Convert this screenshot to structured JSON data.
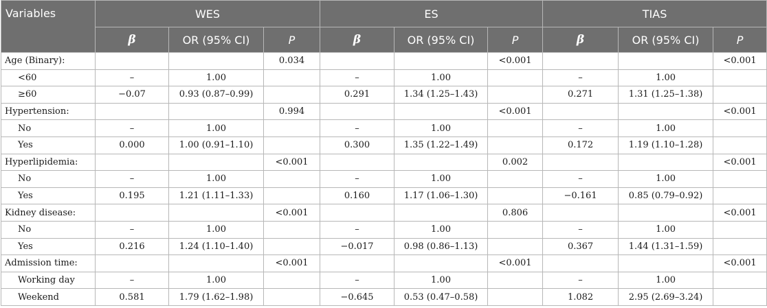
{
  "header": {
    "variables": "Variables",
    "groups": [
      "WES",
      "ES",
      "TIAS"
    ],
    "beta": "β",
    "or": "OR (95% CI)",
    "p": "P"
  },
  "rows": [
    {
      "label": "Age (Binary):",
      "sub": false,
      "c": [
        "",
        "",
        "0.034",
        "",
        "",
        "<0.001",
        "",
        "",
        "<0.001"
      ]
    },
    {
      "label": "<60",
      "sub": true,
      "c": [
        "–",
        "1.00",
        "",
        "–",
        "1.00",
        "",
        "–",
        "1.00",
        ""
      ]
    },
    {
      "label": "≥60",
      "sub": true,
      "c": [
        "−0.07",
        "0.93 (0.87–0.99)",
        "",
        "0.291",
        "1.34 (1.25–1.43)",
        "",
        "0.271",
        "1.31 (1.25–1.38)",
        ""
      ]
    },
    {
      "label": "Hypertension:",
      "sub": false,
      "c": [
        "",
        "",
        "0.994",
        "",
        "",
        "<0.001",
        "",
        "",
        "<0.001"
      ]
    },
    {
      "label": "No",
      "sub": true,
      "c": [
        "–",
        "1.00",
        "",
        "–",
        "1.00",
        "",
        "–",
        "1.00",
        ""
      ]
    },
    {
      "label": "Yes",
      "sub": true,
      "c": [
        "0.000",
        "1.00 (0.91–1.10)",
        "",
        "0.300",
        "1.35 (1.22–1.49)",
        "",
        "0.172",
        "1.19 (1.10–1.28)",
        ""
      ]
    },
    {
      "label": "Hyperlipidemia:",
      "sub": false,
      "c": [
        "",
        "",
        "<0.001",
        "",
        "",
        "0.002",
        "",
        "",
        "<0.001"
      ]
    },
    {
      "label": "No",
      "sub": true,
      "c": [
        "–",
        "1.00",
        "",
        "–",
        "1.00",
        "",
        "–",
        "1.00",
        ""
      ]
    },
    {
      "label": "Yes",
      "sub": true,
      "c": [
        "0.195",
        "1.21 (1.11–1.33)",
        "",
        "0.160",
        "1.17 (1.06–1.30)",
        "",
        "−0.161",
        "0.85 (0.79–0.92)",
        ""
      ]
    },
    {
      "label": "Kidney disease:",
      "sub": false,
      "c": [
        "",
        "",
        "<0.001",
        "",
        "",
        "0.806",
        "",
        "",
        "<0.001"
      ]
    },
    {
      "label": "No",
      "sub": true,
      "c": [
        "–",
        "1.00",
        "",
        "–",
        "1.00",
        "",
        "–",
        "1.00",
        ""
      ]
    },
    {
      "label": "Yes",
      "sub": true,
      "c": [
        "0.216",
        "1.24 (1.10–1.40)",
        "",
        "−0.017",
        "0.98 (0.86–1.13)",
        "",
        "0.367",
        "1.44 (1.31–1.59)",
        ""
      ]
    },
    {
      "label": "Admission time:",
      "sub": false,
      "c": [
        "",
        "",
        "<0.001",
        "",
        "",
        "<0.001",
        "",
        "",
        "<0.001"
      ]
    },
    {
      "label": "Working day",
      "sub": true,
      "c": [
        "–",
        "1.00",
        "",
        "–",
        "1.00",
        "",
        "–",
        "1.00",
        ""
      ]
    },
    {
      "label": "Weekend",
      "sub": true,
      "c": [
        "0.581",
        "1.79 (1.62–1.98)",
        "",
        "−0.645",
        "0.53 (0.47–0.58)",
        "",
        "1.082",
        "2.95 (2.69–3.24)",
        ""
      ]
    }
  ]
}
